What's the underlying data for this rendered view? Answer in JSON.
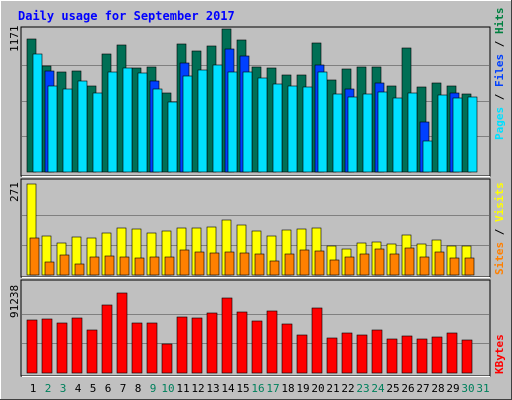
{
  "chart_data": {
    "type": "bar",
    "title": "Daily usage for September 2017",
    "days": [
      "1",
      "2",
      "3",
      "4",
      "5",
      "6",
      "7",
      "8",
      "9",
      "10",
      "11",
      "12",
      "13",
      "14",
      "15",
      "16",
      "17",
      "18",
      "19",
      "20",
      "21",
      "22",
      "23",
      "24",
      "25",
      "26",
      "27",
      "28",
      "29",
      "30",
      "31"
    ],
    "weekend_days": [
      "2",
      "3",
      "9",
      "10",
      "16",
      "17",
      "23",
      "24",
      "30",
      "31"
    ],
    "panels": [
      {
        "id": "requests",
        "scale_label": "1171",
        "ymax": 1171,
        "legend": [
          {
            "label": "Hits",
            "color": "#008040"
          },
          {
            "label": "Files",
            "color": "#0040ff"
          },
          {
            "label": "Pages",
            "color": "#00e0ff"
          }
        ],
        "legend_separator": " / ",
        "series": [
          {
            "name": "Hits",
            "color": "#006f55",
            "values": [
              1087,
              867,
              821,
              831,
              708,
              963,
              1043,
              848,
              857,
              649,
              1051,
              993,
              1030,
              1171,
              1085,
              860,
              849,
              798,
              794,
              1059,
              756,
              844,
              863,
              857,
              707,
              1013,
              696,
              726,
              708,
              641,
              null
            ]
          },
          {
            "name": "Files",
            "color": "#0040ff",
            "values": [
              0,
              829,
              0,
              0,
              0,
              0,
              0,
              0,
              746,
              0,
              893,
              0,
              0,
              1006,
              947,
              0,
              0,
              0,
              0,
              876,
              0,
              679,
              0,
              730,
              0,
              0,
              411,
              0,
              648,
              0,
              null
            ]
          },
          {
            "name": "Pages",
            "color": "#00e0ff",
            "values": [
              964,
              706,
              678,
              745,
              643,
              817,
              855,
              808,
              683,
              576,
              783,
              833,
              874,
              819,
              816,
              767,
              719,
              702,
              696,
              820,
              642,
              618,
              638,
              652,
              608,
              648,
              255,
              632,
              608,
              617,
              null
            ]
          }
        ]
      },
      {
        "id": "visits",
        "scale_label": "271",
        "ymax": 271,
        "legend": [
          {
            "label": "Visits",
            "color": "#ffff00"
          },
          {
            "label": "Sites",
            "color": "#ff8000"
          }
        ],
        "legend_separator": " / ",
        "series": [
          {
            "name": "Visits",
            "color": "#ffff00",
            "values": [
              271,
              115,
              94,
              112,
              109,
              124,
              139,
              138,
              126,
              131,
              140,
              140,
              143,
              163,
              148,
              131,
              117,
              135,
              136,
              140,
              87,
              76,
              96,
              97,
              91,
              118,
              91,
              103,
              86,
              86,
              null
            ]
          },
          {
            "name": "Sites",
            "color": "#ff8000",
            "values": [
              110,
              40,
              59,
              33,
              54,
              57,
              53,
              52,
              54,
              55,
              74,
              69,
              66,
              69,
              66,
              64,
              41,
              63,
              74,
              70,
              46,
              55,
              62,
              78,
              64,
              81,
              54,
              69,
              52,
              50,
              null
            ]
          }
        ]
      },
      {
        "id": "kbytes",
        "scale_label": "91238",
        "ymax": 91238,
        "legend": [
          {
            "label": "KBytes",
            "color": "#ff0000"
          }
        ],
        "legend_separator": " / ",
        "series": [
          {
            "name": "KBytes",
            "color": "#ff0000",
            "values": [
              53900,
              54300,
              50900,
              55300,
              43900,
              68700,
              81200,
              50400,
              50500,
              29100,
              57000,
              55400,
              60400,
              75800,
              61600,
              52300,
              63000,
              49200,
              38100,
              65700,
              35700,
              40300,
              38800,
              43200,
              34400,
              38000,
              34900,
              36500,
              40400,
              33500,
              null
            ]
          }
        ]
      }
    ]
  },
  "colors": {
    "page_background": "#c0c0c0",
    "plot_background": "#c0c0c0",
    "title": "#0000ff",
    "weekday_label": "#000000",
    "weekend_label": "#00805c",
    "gridline": "#808080"
  }
}
